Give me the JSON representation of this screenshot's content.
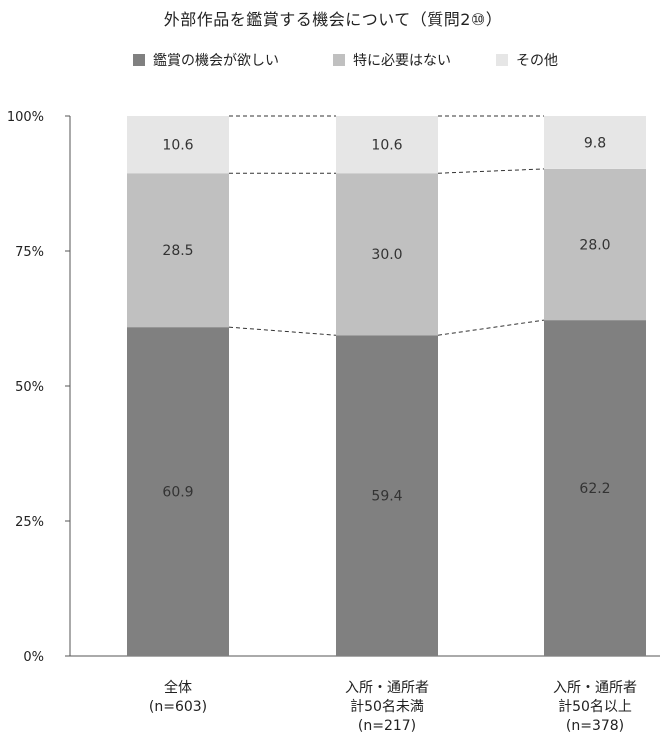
{
  "chart_data": {
    "type": "bar",
    "stacked": true,
    "title": "外部作品を鑑賞する機会について（質問2⑩）",
    "ylim": [
      0,
      100
    ],
    "yticks": [
      "0%",
      "25%",
      "50%",
      "75%",
      "100%"
    ],
    "categories": [
      [
        "全体",
        "(n=603)"
      ],
      [
        "入所・通所者",
        "計50名未満",
        "(n=217)"
      ],
      [
        "入所・通所者",
        "計50名以上",
        "(n=378)"
      ]
    ],
    "series": [
      {
        "name": "鑑賞の機会が欲しい",
        "color": "#808080",
        "values": [
          60.9,
          59.4,
          62.2
        ]
      },
      {
        "name": "特に必要はない",
        "color": "#c0c0c0",
        "values": [
          28.5,
          30.0,
          28.0
        ]
      },
      {
        "name": "その他",
        "color": "#e6e6e6",
        "values": [
          10.6,
          10.6,
          9.8
        ]
      }
    ],
    "value_labels": [
      [
        "60.9",
        "59.4",
        "62.2"
      ],
      [
        "28.5",
        "30.0",
        "28.0"
      ],
      [
        "10.6",
        "10.6",
        "9.8"
      ]
    ],
    "connector_lines": "dashed",
    "legend_position": "top"
  }
}
